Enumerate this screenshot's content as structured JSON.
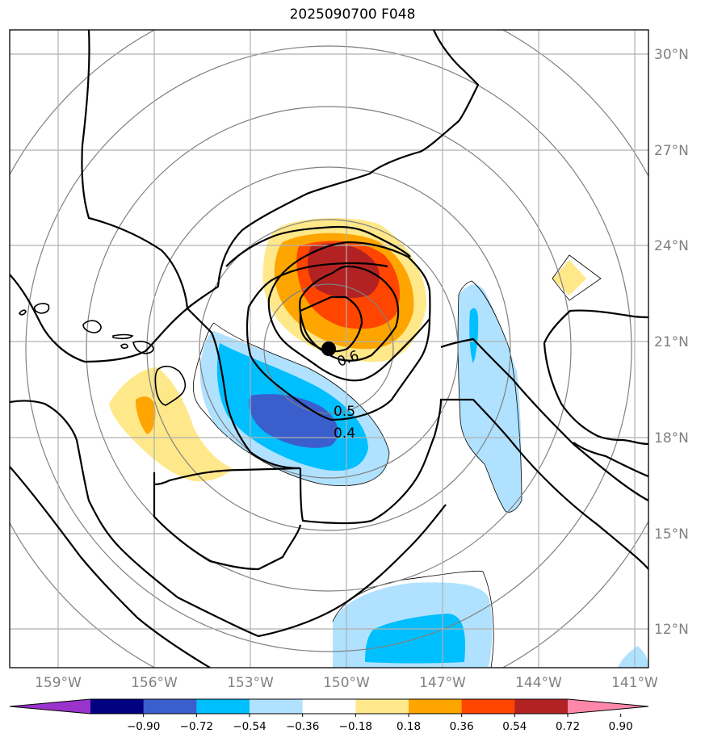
{
  "title": "2025090700 F048",
  "map": {
    "lon_ticks": [
      "159°W",
      "156°W",
      "153°W",
      "150°W",
      "147°W",
      "144°W",
      "141°W"
    ],
    "lat_ticks": [
      "30°N",
      "27°N",
      "24°N",
      "21°N",
      "18°N",
      "15°N",
      "12°N"
    ],
    "contour_labels": [
      "0.6",
      "0.5",
      "0.4"
    ],
    "tick_color": "#808080",
    "grid_color": "#b0b0b0",
    "range_ring_color": "#808080",
    "marker": "storm-center-dot"
  },
  "colorbar": {
    "ticks": [
      "−0.90",
      "−0.72",
      "−0.54",
      "−0.36",
      "−0.18",
      "0.18",
      "0.36",
      "0.54",
      "0.72",
      "0.90"
    ],
    "colors": [
      "#9933cc",
      "#000080",
      "#3a5fcd",
      "#00bfff",
      "#b0e2ff",
      "#ffffff",
      "#ffe88a",
      "#ffa500",
      "#ff4500",
      "#b22222",
      "#ff88aa"
    ]
  }
}
